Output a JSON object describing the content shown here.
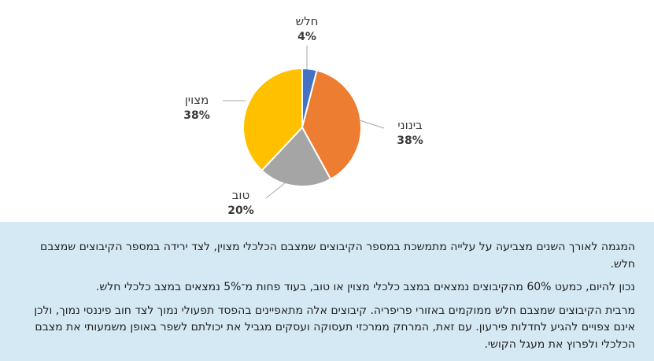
{
  "chart_data": {
    "type": "pie",
    "slices": [
      {
        "label": "חלש",
        "value": 4,
        "display": "4%",
        "color": "#4472c4"
      },
      {
        "label": "בינוני",
        "value": 38,
        "display": "38%",
        "color": "#ed7d31"
      },
      {
        "label": "טוב",
        "value": 20,
        "display": "20%",
        "color": "#a5a5a5"
      },
      {
        "label": "מצוין",
        "value": 38,
        "display": "38%",
        "color": "#ffc000"
      }
    ],
    "start_angle_deg": 0,
    "direction": "clockwise",
    "leader_color": "#a6a6a6"
  },
  "description": {
    "paragraphs": [
      "המגמה לאורך השנים מצביעה על עלייה מתמשכת במספר הקיבוצים שמצבם הכלכלי מצוין, לצד ירידה במספר הקיבוצים שמצבם חלש.",
      "נכון להיום, כמעט 60% מהקיבוצים נמצאים במצב כלכלי מצוין או טוב, בעוד פחות מ־5% נמצאים במצב כלכלי חלש.",
      "מרבית הקיבוצים שמצבם חלש ממוקמים באזורי פריפריה. קיבוצים אלה מתאפיינים בהפסד תפעולי נמוך לצד חוב פיננסי נמוך, ולכן אינם צפויים להגיע לחדלות פירעון. עם זאת, המרחק ממרכזי תעסוקה ועסקים מגביל את יכולתם לשפר באופן משמעותי את מצבם הכלכלי ולפרוץ את מעגל הקושי."
    ]
  }
}
